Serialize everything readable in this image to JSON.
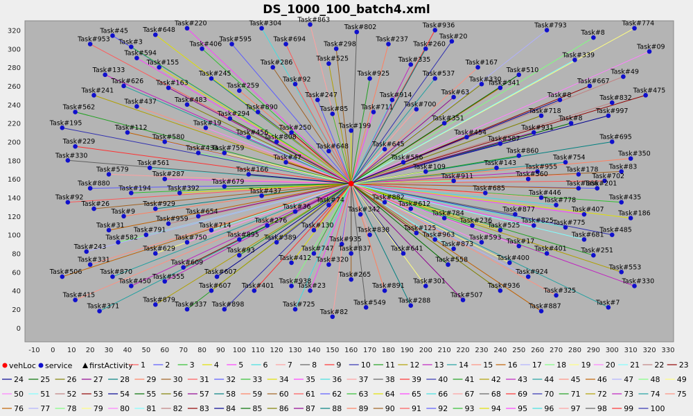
{
  "chart_data": {
    "type": "scatter",
    "title": "DS_1000_100_batch4.xml",
    "xlabel": "",
    "ylabel": "",
    "xlim": [
      -15,
      333
    ],
    "ylim": [
      -15,
      330
    ],
    "x_ticks": [
      -10,
      0,
      10,
      20,
      30,
      40,
      50,
      60,
      70,
      80,
      90,
      100,
      110,
      120,
      130,
      140,
      150,
      160,
      170,
      180,
      190,
      200,
      210,
      220,
      230,
      240,
      250,
      260,
      270,
      280,
      290,
      300,
      310,
      320,
      330
    ],
    "y_ticks": [
      0,
      20,
      40,
      60,
      80,
      100,
      120,
      140,
      160,
      180,
      200,
      220,
      240,
      260,
      280,
      300,
      320
    ],
    "grid": false,
    "legend_position": "bottom",
    "depot": {
      "x": 160,
      "y": 155
    },
    "series": [
      {
        "name": "vehLoc",
        "marker": "circle",
        "color": "#ff0000"
      },
      {
        "name": "service",
        "marker": "circle",
        "color": "#1010cc"
      },
      {
        "name": "firstActivity",
        "marker": "triangle",
        "color": "#000000"
      }
    ],
    "route_names": [
      "1",
      "2",
      "3",
      "4",
      "5",
      "6",
      "7",
      "8",
      "9",
      "10",
      "11",
      "12",
      "13",
      "14",
      "15",
      "16",
      "17",
      "18",
      "19",
      "20",
      "21",
      "22",
      "23",
      "24",
      "25",
      "26",
      "27",
      "28",
      "29",
      "30",
      "31",
      "32",
      "33",
      "34",
      "35",
      "36",
      "37",
      "38",
      "39",
      "40",
      "41",
      "42",
      "43",
      "44",
      "45",
      "46",
      "47",
      "48",
      "49",
      "50",
      "51",
      "52",
      "53",
      "54",
      "55",
      "56",
      "57",
      "58",
      "59",
      "60",
      "61",
      "62",
      "63",
      "64",
      "65",
      "66",
      "67",
      "68",
      "69",
      "70",
      "71",
      "72",
      "73",
      "74",
      "75",
      "76",
      "77",
      "78",
      "79",
      "80",
      "81",
      "82",
      "83",
      "84",
      "85",
      "86",
      "87",
      "88",
      "89",
      "90",
      "91",
      "92",
      "93",
      "94",
      "95",
      "96",
      "97",
      "98",
      "99",
      "100"
    ],
    "route_colors": [
      "#ff5a5a",
      "#5a5aff",
      "#30c030",
      "#e0e000",
      "#ff40ff",
      "#40e0e0",
      "#ffa0a0",
      "#606060",
      "#ff3030",
      "#3030b0",
      "#20a020",
      "#b0a000",
      "#c020c0",
      "#20a0a0",
      "#ff9080",
      "#c06000",
      "#b0b0ff",
      "#80ff80",
      "#ffff80",
      "#ff80ff",
      "#80ffff",
      "#c08080",
      "#900000",
      "#000090",
      "#007000",
      "#808000",
      "#900090",
      "#008080",
      "#ff8060",
      "#a06020"
    ],
    "service_points": [
      {
        "x": 20,
        "y": 305,
        "label": "Task#953"
      },
      {
        "x": 32,
        "y": 314,
        "label": "Task#45"
      },
      {
        "x": 42,
        "y": 302,
        "label": "Task#3"
      },
      {
        "x": 57,
        "y": 280,
        "label": "Task#155"
      },
      {
        "x": 72,
        "y": 322,
        "label": "Task#220"
      },
      {
        "x": 112,
        "y": 322,
        "label": "Task#304"
      },
      {
        "x": 138,
        "y": 326,
        "label": "Task#863"
      },
      {
        "x": 163,
        "y": 318,
        "label": "Task#802"
      },
      {
        "x": 205,
        "y": 320,
        "label": "Task#936"
      },
      {
        "x": 214,
        "y": 308,
        "label": "Task#20"
      },
      {
        "x": 170,
        "y": 268,
        "label": "Task#925"
      },
      {
        "x": 148,
        "y": 284,
        "label": "Task#525"
      },
      {
        "x": 192,
        "y": 283,
        "label": "Task#335"
      },
      {
        "x": 205,
        "y": 268,
        "label": "Task#537"
      },
      {
        "x": 228,
        "y": 280,
        "label": "Task#167"
      },
      {
        "x": 240,
        "y": 258,
        "label": "Task#341"
      },
      {
        "x": 265,
        "y": 320,
        "label": "Task#793"
      },
      {
        "x": 290,
        "y": 312,
        "label": "Task#8"
      },
      {
        "x": 312,
        "y": 322,
        "label": "Task#774"
      },
      {
        "x": 320,
        "y": 297,
        "label": "Task#09"
      },
      {
        "x": 280,
        "y": 288,
        "label": "Task#339"
      },
      {
        "x": 306,
        "y": 270,
        "label": "Task#49"
      },
      {
        "x": 318,
        "y": 250,
        "label": "Task#475"
      },
      {
        "x": 298,
        "y": 228,
        "label": "Task#997"
      },
      {
        "x": 278,
        "y": 220,
        "label": "Task#8"
      },
      {
        "x": 262,
        "y": 228,
        "label": "Task#718"
      },
      {
        "x": 258,
        "y": 210,
        "label": "Task#931"
      },
      {
        "x": 300,
        "y": 200,
        "label": "Task#695"
      },
      {
        "x": 310,
        "y": 182,
        "label": "Task#350"
      },
      {
        "x": 305,
        "y": 168,
        "label": "Task#83"
      },
      {
        "x": 296,
        "y": 158,
        "label": "Task#702"
      },
      {
        "x": 292,
        "y": 150,
        "label": "Task#201"
      },
      {
        "x": 305,
        "y": 135,
        "label": "Task#435"
      },
      {
        "x": 310,
        "y": 118,
        "label": "Task#186"
      },
      {
        "x": 285,
        "y": 122,
        "label": "Task#407"
      },
      {
        "x": 270,
        "y": 132,
        "label": "Task#778"
      },
      {
        "x": 262,
        "y": 140,
        "label": "Task#446"
      },
      {
        "x": 248,
        "y": 122,
        "label": "Task#877"
      },
      {
        "x": 232,
        "y": 145,
        "label": "Task#685"
      },
      {
        "x": 300,
        "y": 100,
        "label": "Task#485"
      },
      {
        "x": 290,
        "y": 78,
        "label": "Task#251"
      },
      {
        "x": 305,
        "y": 60,
        "label": "Task#553"
      },
      {
        "x": 312,
        "y": 45,
        "label": "Task#330"
      },
      {
        "x": 298,
        "y": 22,
        "label": "Task#7"
      },
      {
        "x": 270,
        "y": 35,
        "label": "Task#325"
      },
      {
        "x": 262,
        "y": 18,
        "label": "Task#887"
      },
      {
        "x": 255,
        "y": 55,
        "label": "Task#924"
      },
      {
        "x": 265,
        "y": 80,
        "label": "Task#401"
      },
      {
        "x": 245,
        "y": 70,
        "label": "Task#400"
      },
      {
        "x": 230,
        "y": 92,
        "label": "Task#593"
      },
      {
        "x": 215,
        "y": 85,
        "label": "Task#873"
      },
      {
        "x": 205,
        "y": 95,
        "label": "Task#963"
      },
      {
        "x": 195,
        "y": 102,
        "label": "Task#125"
      },
      {
        "x": 188,
        "y": 80,
        "label": "Task#641"
      },
      {
        "x": 212,
        "y": 68,
        "label": "Task#558"
      },
      {
        "x": 240,
        "y": 40,
        "label": "Task#936"
      },
      {
        "x": 220,
        "y": 30,
        "label": "Task#507"
      },
      {
        "x": 192,
        "y": 24,
        "label": "Task#288"
      },
      {
        "x": 178,
        "y": 40,
        "label": "Task#891"
      },
      {
        "x": 160,
        "y": 52,
        "label": "Task#265"
      },
      {
        "x": 148,
        "y": 68,
        "label": "Task#320"
      },
      {
        "x": 155,
        "y": 90,
        "label": "Task#935"
      },
      {
        "x": 140,
        "y": 80,
        "label": "Task#747"
      },
      {
        "x": 128,
        "y": 70,
        "label": "Task#412"
      },
      {
        "x": 138,
        "y": 40,
        "label": "Task#23"
      },
      {
        "x": 130,
        "y": 20,
        "label": "Task#725"
      },
      {
        "x": 150,
        "y": 12,
        "label": "Task#82"
      },
      {
        "x": 168,
        "y": 22,
        "label": "Task#549"
      },
      {
        "x": 108,
        "y": 40,
        "label": "Task#401"
      },
      {
        "x": 92,
        "y": 20,
        "label": "Task#898"
      },
      {
        "x": 72,
        "y": 20,
        "label": "Task#337"
      },
      {
        "x": 55,
        "y": 25,
        "label": "Task#879"
      },
      {
        "x": 42,
        "y": 45,
        "label": "Task#450"
      },
      {
        "x": 25,
        "y": 18,
        "label": "Task#371"
      },
      {
        "x": 12,
        "y": 30,
        "label": "Task#415"
      },
      {
        "x": 5,
        "y": 55,
        "label": "Task#506"
      },
      {
        "x": 18,
        "y": 82,
        "label": "Task#243"
      },
      {
        "x": 35,
        "y": 92,
        "label": "Task#582"
      },
      {
        "x": 55,
        "y": 80,
        "label": "Task#629"
      },
      {
        "x": 72,
        "y": 92,
        "label": "Task#750"
      },
      {
        "x": 85,
        "y": 105,
        "label": "Task#714"
      },
      {
        "x": 62,
        "y": 112,
        "label": "Task#959"
      },
      {
        "x": 70,
        "y": 65,
        "label": "Task#609"
      },
      {
        "x": 88,
        "y": 55,
        "label": "Task#607"
      },
      {
        "x": 100,
        "y": 95,
        "label": "Task#895"
      },
      {
        "x": 115,
        "y": 110,
        "label": "Task#276"
      },
      {
        "x": 78,
        "y": 120,
        "label": "Task#654"
      },
      {
        "x": 55,
        "y": 128,
        "label": "Task#929"
      },
      {
        "x": 38,
        "y": 120,
        "label": "Task#9"
      },
      {
        "x": 22,
        "y": 128,
        "label": "Task#26"
      },
      {
        "x": 8,
        "y": 135,
        "label": "Task#92"
      },
      {
        "x": 20,
        "y": 150,
        "label": "Task#880"
      },
      {
        "x": 42,
        "y": 145,
        "label": "Task#194"
      },
      {
        "x": 68,
        "y": 145,
        "label": "Task#392"
      },
      {
        "x": 60,
        "y": 160,
        "label": "Task#287"
      },
      {
        "x": 52,
        "y": 172,
        "label": "Task#561"
      },
      {
        "x": 30,
        "y": 165,
        "label": "Task#579"
      },
      {
        "x": 8,
        "y": 180,
        "label": "Task#330"
      },
      {
        "x": 12,
        "y": 195,
        "label": "Task#229"
      },
      {
        "x": 5,
        "y": 215,
        "label": "Task#195"
      },
      {
        "x": 12,
        "y": 232,
        "label": "Task#562"
      },
      {
        "x": 22,
        "y": 250,
        "label": "Task#241"
      },
      {
        "x": 28,
        "y": 272,
        "label": "Task#133"
      },
      {
        "x": 38,
        "y": 260,
        "label": "Task#626"
      },
      {
        "x": 45,
        "y": 238,
        "label": "Task#437"
      },
      {
        "x": 40,
        "y": 210,
        "label": "Task#112"
      },
      {
        "x": 60,
        "y": 200,
        "label": "Task#580"
      },
      {
        "x": 78,
        "y": 188,
        "label": "Task#433"
      },
      {
        "x": 92,
        "y": 188,
        "label": "Task#759"
      },
      {
        "x": 82,
        "y": 215,
        "label": "Task#19"
      },
      {
        "x": 105,
        "y": 205,
        "label": "Task#456"
      },
      {
        "x": 120,
        "y": 200,
        "label": "Task#808"
      },
      {
        "x": 128,
        "y": 210,
        "label": "Task#250"
      },
      {
        "x": 110,
        "y": 232,
        "label": "Task#890"
      },
      {
        "x": 95,
        "y": 225,
        "label": "Task#294"
      },
      {
        "x": 72,
        "y": 240,
        "label": "Task#483"
      },
      {
        "x": 62,
        "y": 258,
        "label": "Task#163"
      },
      {
        "x": 85,
        "y": 268,
        "label": "Task#245"
      },
      {
        "x": 100,
        "y": 255,
        "label": "Task#259"
      },
      {
        "x": 118,
        "y": 280,
        "label": "Task#286"
      },
      {
        "x": 130,
        "y": 262,
        "label": "Task#92"
      },
      {
        "x": 142,
        "y": 245,
        "label": "Task#247"
      },
      {
        "x": 150,
        "y": 230,
        "label": "Task#85"
      },
      {
        "x": 160,
        "y": 212,
        "label": "Task#199"
      },
      {
        "x": 172,
        "y": 232,
        "label": "Task#711"
      },
      {
        "x": 182,
        "y": 245,
        "label": "Task#914"
      },
      {
        "x": 195,
        "y": 235,
        "label": "Task#700"
      },
      {
        "x": 210,
        "y": 220,
        "label": "Task#351"
      },
      {
        "x": 222,
        "y": 205,
        "label": "Task#454"
      },
      {
        "x": 240,
        "y": 198,
        "label": "Task#587"
      },
      {
        "x": 250,
        "y": 185,
        "label": "Task#860"
      },
      {
        "x": 238,
        "y": 172,
        "label": "Task#143"
      },
      {
        "x": 260,
        "y": 168,
        "label": "Task#955"
      },
      {
        "x": 275,
        "y": 178,
        "label": "Task#754"
      },
      {
        "x": 282,
        "y": 165,
        "label": "Task#178"
      },
      {
        "x": 282,
        "y": 150,
        "label": "Task#866"
      },
      {
        "x": 255,
        "y": 160,
        "label": "Task#560"
      },
      {
        "x": 215,
        "y": 158,
        "label": "Task#911"
      },
      {
        "x": 200,
        "y": 168,
        "label": "Task#109"
      },
      {
        "x": 188,
        "y": 178,
        "label": "Task#556"
      },
      {
        "x": 178,
        "y": 192,
        "label": "Task#645"
      },
      {
        "x": 148,
        "y": 190,
        "label": "Task#648"
      },
      {
        "x": 125,
        "y": 178,
        "label": "Task#47"
      },
      {
        "x": 105,
        "y": 165,
        "label": "Task#166"
      },
      {
        "x": 92,
        "y": 152,
        "label": "Task#679"
      },
      {
        "x": 112,
        "y": 142,
        "label": "Task#437"
      },
      {
        "x": 130,
        "y": 125,
        "label": "Task#36"
      },
      {
        "x": 148,
        "y": 132,
        "label": "Task#74"
      },
      {
        "x": 165,
        "y": 122,
        "label": "Task#342"
      },
      {
        "x": 178,
        "y": 135,
        "label": "Task#882"
      },
      {
        "x": 192,
        "y": 128,
        "label": "Task#612"
      },
      {
        "x": 210,
        "y": 118,
        "label": "Task#784"
      },
      {
        "x": 225,
        "y": 110,
        "label": "Task#236"
      },
      {
        "x": 240,
        "y": 105,
        "label": "Task#525"
      },
      {
        "x": 258,
        "y": 110,
        "label": "Task#825"
      },
      {
        "x": 275,
        "y": 108,
        "label": "Task#775"
      },
      {
        "x": 170,
        "y": 100,
        "label": "Task#838"
      },
      {
        "x": 160,
        "y": 80,
        "label": "Task#837"
      },
      {
        "x": 140,
        "y": 105,
        "label": "Task#130"
      },
      {
        "x": 120,
        "y": 92,
        "label": "Task#389"
      },
      {
        "x": 100,
        "y": 78,
        "label": "Task#93"
      },
      {
        "x": 85,
        "y": 40,
        "label": "Task#607"
      },
      {
        "x": 60,
        "y": 50,
        "label": "Task#555"
      },
      {
        "x": 32,
        "y": 55,
        "label": "Task#870"
      },
      {
        "x": 20,
        "y": 68,
        "label": "Task#331"
      },
      {
        "x": 30,
        "y": 105,
        "label": "Task#31"
      },
      {
        "x": 50,
        "y": 100,
        "label": "Task#791"
      },
      {
        "x": 128,
        "y": 45,
        "label": "Task#938"
      },
      {
        "x": 200,
        "y": 45,
        "label": "Task#301"
      },
      {
        "x": 250,
        "y": 88,
        "label": "Task#17"
      },
      {
        "x": 285,
        "y": 95,
        "label": "Task#681"
      },
      {
        "x": 300,
        "y": 242,
        "label": "Task#832"
      },
      {
        "x": 288,
        "y": 260,
        "label": "Task#667"
      },
      {
        "x": 272,
        "y": 245,
        "label": "Task#8"
      },
      {
        "x": 250,
        "y": 272,
        "label": "Task#510"
      },
      {
        "x": 230,
        "y": 262,
        "label": "Task#330"
      },
      {
        "x": 215,
        "y": 248,
        "label": "Task#63"
      },
      {
        "x": 200,
        "y": 300,
        "label": "Task#260"
      },
      {
        "x": 180,
        "y": 305,
        "label": "Task#237"
      },
      {
        "x": 152,
        "y": 300,
        "label": "Task#298"
      },
      {
        "x": 125,
        "y": 305,
        "label": "Task#694"
      },
      {
        "x": 96,
        "y": 305,
        "label": "Task#595"
      },
      {
        "x": 80,
        "y": 300,
        "label": "Task#406"
      },
      {
        "x": 55,
        "y": 315,
        "label": "Task#648"
      },
      {
        "x": 45,
        "y": 290,
        "label": "Task#594"
      }
    ]
  },
  "legend": {
    "markers": [
      {
        "label": "vehLoc"
      },
      {
        "label": "service"
      },
      {
        "label": "firstActivity"
      }
    ]
  }
}
